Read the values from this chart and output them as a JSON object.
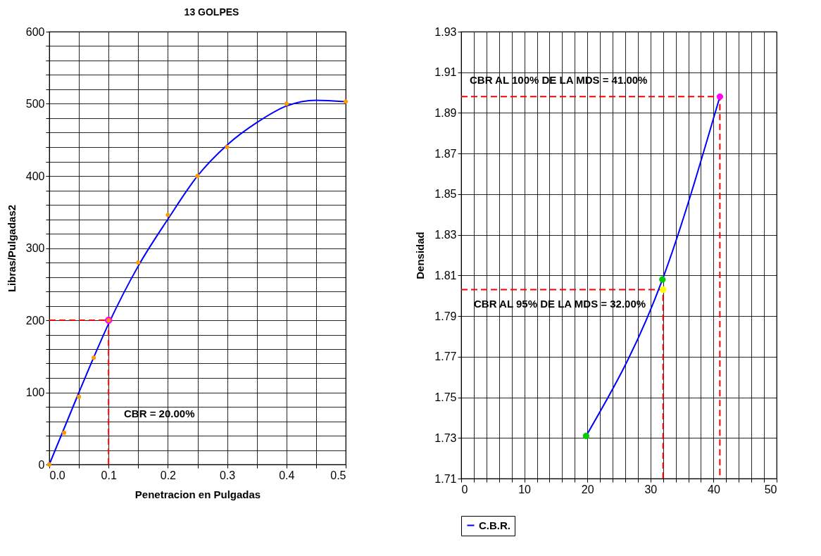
{
  "chart_data": [
    {
      "type": "scatter",
      "title": "13 GOLPES",
      "xlabel": "Penetracion en Pulgadas",
      "ylabel": "Libras/Pulgadas2",
      "xlim": [
        0,
        0.5
      ],
      "ylim": [
        0,
        600
      ],
      "xticks": [
        {
          "value": 0,
          "label": "0.0"
        },
        {
          "value": 0.05,
          "label": null
        },
        0.1,
        {
          "value": 0.15,
          "label": null
        },
        0.2,
        {
          "value": 0.25,
          "label": null
        },
        0.3,
        {
          "value": 0.35,
          "label": null
        },
        0.4,
        {
          "value": 0.45,
          "label": null
        },
        0.5
      ],
      "yticks": [
        0,
        {
          "value": 20,
          "label": null
        },
        {
          "value": 40,
          "label": null
        },
        {
          "value": 60,
          "label": null
        },
        {
          "value": 80,
          "label": null
        },
        100,
        {
          "value": 120,
          "label": null
        },
        {
          "value": 140,
          "label": null
        },
        {
          "value": 160,
          "label": null
        },
        {
          "value": 180,
          "label": null
        },
        200,
        {
          "value": 220,
          "label": null
        },
        {
          "value": 240,
          "label": null
        },
        {
          "value": 260,
          "label": null
        },
        {
          "value": 280,
          "label": null
        },
        300,
        {
          "value": 320,
          "label": null
        },
        {
          "value": 340,
          "label": null
        },
        {
          "value": 360,
          "label": null
        },
        {
          "value": 380,
          "label": null
        },
        400,
        {
          "value": 420,
          "label": null
        },
        {
          "value": 440,
          "label": null
        },
        {
          "value": 460,
          "label": null
        },
        {
          "value": 480,
          "label": null
        },
        500,
        {
          "value": 520,
          "label": null
        },
        {
          "value": 540,
          "label": null
        },
        {
          "value": 560,
          "label": null
        },
        {
          "value": 580,
          "label": null
        },
        600
      ],
      "grid": true,
      "annotations": [
        "CBR = 20.00%"
      ],
      "series": [
        {
          "type": "line",
          "color": "#ff0000",
          "line_style": "dashed",
          "x": [
            0,
            0.1,
            0.1
          ],
          "values": [
            200,
            200,
            0
          ]
        },
        {
          "type": "line",
          "color": "#0000ff",
          "x": [
            0,
            0.05,
            0.1,
            0.15,
            0.2,
            0.25,
            0.3,
            0.35,
            0.4,
            0.45,
            0.5
          ],
          "values": [
            0,
            100,
            195,
            275,
            340,
            400,
            443,
            474,
            497,
            505,
            503
          ]
        },
        {
          "type": "scatter",
          "color": "#ff00ff",
          "marker": "circle",
          "x": [
            0.1
          ],
          "values": [
            200
          ]
        },
        {
          "type": "scatter",
          "color": "#ff9900",
          "marker": "circle",
          "x": [
            0,
            0.025,
            0.05,
            0.075,
            0.1,
            0.15,
            0.2,
            0.25,
            0.3,
            0.4,
            0.5
          ],
          "values": [
            0,
            44,
            94,
            148,
            200,
            280,
            346,
            400,
            440,
            500,
            503
          ]
        }
      ]
    },
    {
      "type": "line",
      "ylabel": "Densidad",
      "xlim": [
        0,
        50
      ],
      "ylim": [
        1.71,
        1.93
      ],
      "xticks": [
        0,
        {
          "value": 2,
          "label": null
        },
        {
          "value": 4,
          "label": null
        },
        {
          "value": 6,
          "label": null
        },
        {
          "value": 8,
          "label": null
        },
        10,
        {
          "value": 12,
          "label": null
        },
        {
          "value": 14,
          "label": null
        },
        {
          "value": 16,
          "label": null
        },
        {
          "value": 18,
          "label": null
        },
        20,
        {
          "value": 22,
          "label": null
        },
        {
          "value": 24,
          "label": null
        },
        {
          "value": 26,
          "label": null
        },
        {
          "value": 28,
          "label": null
        },
        30,
        {
          "value": 32,
          "label": null
        },
        {
          "value": 34,
          "label": null
        },
        {
          "value": 36,
          "label": null
        },
        {
          "value": 38,
          "label": null
        },
        40,
        {
          "value": 42,
          "label": null
        },
        {
          "value": 44,
          "label": null
        },
        {
          "value": 46,
          "label": null
        },
        {
          "value": 48,
          "label": null
        },
        50
      ],
      "yticks": [
        1.71,
        1.73,
        1.75,
        1.77,
        1.79,
        1.81,
        1.83,
        1.85,
        1.87,
        1.89,
        1.91,
        1.93
      ],
      "grid": true,
      "legend": "bottom",
      "annotations": [
        "CBR AL 100% DE LA MDS =  41.00%",
        "CBR AL 95% DE LA MDS =  32.00%"
      ],
      "series": [
        {
          "type": "line",
          "color": "#ff0000",
          "line_style": "dashed",
          "x": [
            0,
            41,
            41
          ],
          "values": [
            1.898,
            1.898,
            1.71
          ]
        },
        {
          "type": "line",
          "color": "#ff0000",
          "line_style": "dashed",
          "x": [
            0,
            32,
            32
          ],
          "values": [
            1.803,
            1.803,
            1.71
          ]
        },
        {
          "name": "C.B.R.",
          "color": "#0000ff",
          "marker": "circle",
          "colors": [
            "#00cc00",
            "#00cc00",
            "#ff00ff"
          ],
          "x": [
            19.8,
            31.9,
            41
          ],
          "values": [
            1.731,
            1.808,
            1.898
          ]
        },
        {
          "type": "scatter",
          "color": "#ffff00",
          "marker": "circle",
          "x": [
            32
          ],
          "values": [
            1.803
          ]
        }
      ]
    }
  ]
}
